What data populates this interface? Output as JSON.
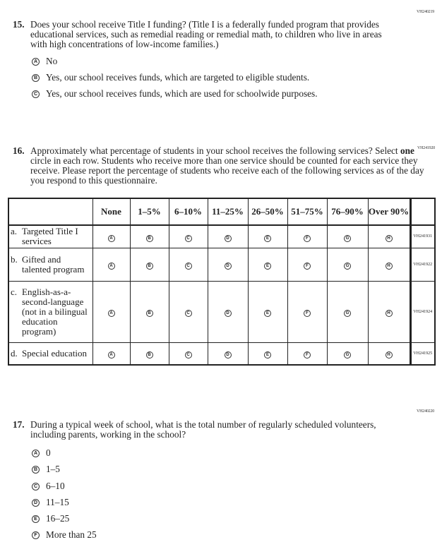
{
  "q15": {
    "code": "VH240219",
    "number": "15.",
    "text": "Does your school receive Title I funding? (Title I is a federally funded program that provides educational services, such as remedial reading or remedial math, to children who live in areas with high concentrations of low-income families.)",
    "options": [
      {
        "letter": "A",
        "label": "No"
      },
      {
        "letter": "B",
        "label": "Yes, our school receives funds, which are targeted to eligible students."
      },
      {
        "letter": "C",
        "label": "Yes, our school receives funds, which are used for schoolwide purposes."
      }
    ]
  },
  "q16": {
    "code": "VH241920",
    "number": "16.",
    "text_before": "Approximately what percentage of students in your school receives the following services? Select ",
    "text_bold": "one",
    "text_after": " circle in each row. Students who receive more than one service should be counted for each service they receive. Please report the percentage of students who receive each of the following services as of the day you respond to this questionnaire.",
    "columns": [
      "None",
      "1–5%",
      "6–10%",
      "11–25%",
      "26–50%",
      "51–75%",
      "76–90%",
      "Over 90%"
    ],
    "letters": [
      "A",
      "B",
      "C",
      "D",
      "E",
      "F",
      "G",
      "H"
    ],
    "rows": [
      {
        "letter": "a.",
        "label": "Targeted Title I services",
        "code": "VH241931"
      },
      {
        "letter": "b.",
        "label": "Gifted and talented program",
        "code": "VH241922"
      },
      {
        "letter": "c.",
        "label": "English-as-a-second-language (not in a bilingual education program)",
        "code": "VH241924"
      },
      {
        "letter": "d.",
        "label": "Special education",
        "code": "VH241925"
      }
    ]
  },
  "q17": {
    "code": "VH240220",
    "number": "17.",
    "text": "During a typical week of school, what is the total number of regularly scheduled volunteers, including parents, working in the school?",
    "options": [
      {
        "letter": "A",
        "label": "0"
      },
      {
        "letter": "B",
        "label": "1–5"
      },
      {
        "letter": "C",
        "label": "6–10"
      },
      {
        "letter": "D",
        "label": "11–15"
      },
      {
        "letter": "E",
        "label": "16–25"
      },
      {
        "letter": "F",
        "label": "More than 25"
      }
    ]
  }
}
